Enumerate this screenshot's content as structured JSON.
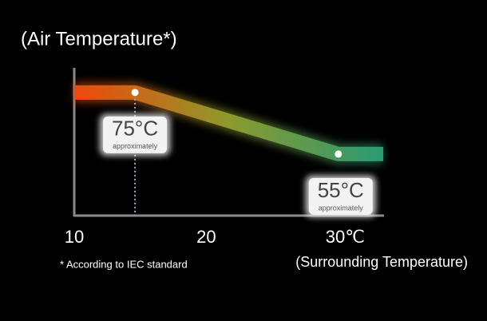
{
  "chart_data": {
    "type": "line",
    "title": "(Air Temperature*)",
    "x_label": "(Surrounding Temperature)",
    "footnote": "* According to IEC standard",
    "point_note": "approximately",
    "x": [
      10,
      14.6,
      30,
      33.4
    ],
    "values": [
      75,
      75,
      55,
      55
    ],
    "value_labels": [
      null,
      "75°C",
      "55°C",
      null
    ],
    "gradient": [
      "#f0480c",
      "#8c9a2c",
      "#2a9a74"
    ],
    "xlim": [
      10,
      33.4
    ],
    "ylim": [
      35,
      83
    ],
    "xticks": [
      10,
      20,
      {
        "value": 30,
        "label": "30℃"
      }
    ]
  }
}
